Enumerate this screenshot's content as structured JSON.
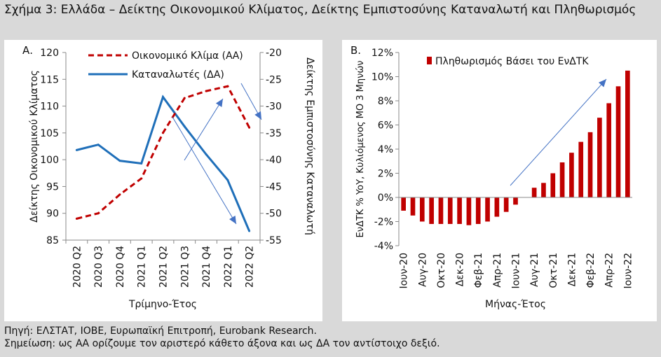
{
  "figure": {
    "title": "Σχήμα 3: Ελλάδα – Δείκτης Οικονομικού Κλίματος, Δείκτης Εμπιστοσύνης Καταναλωτή και Πληθωρισμός",
    "source": "Πηγή: ΕΛΣΤΑΤ, ΙΟΒΕ, Ευρωπαϊκή Επιτροπή, Eurobank Research.",
    "note": "Σημείωση: ως ΑΑ ορίζουμε τον αριστερό κάθετο άξονα και ως ΔΑ τον αντίστοιχο δεξιό."
  },
  "chart_data": [
    {
      "panel_label": "Α.",
      "type": "line",
      "categories": [
        "2020 Q2",
        "2020 Q3",
        "2020 Q4",
        "2021 Q1",
        "2021 Q2",
        "2021 Q3",
        "2021 Q4",
        "2022 Q1",
        "2022 Q2"
      ],
      "xlabel": "Τρίμηνο-Έτος",
      "ylabel": "Δείκτης Οικονομικού Κλίματος",
      "ylabel_right": "Δείκτης Εμπιστοσύνης Καταναλωτή",
      "ylim": [
        85,
        120
      ],
      "yticks": [
        85,
        90,
        95,
        100,
        105,
        110,
        115,
        120
      ],
      "ylim_right": [
        -55,
        -20
      ],
      "yticks_right": [
        -55,
        -50,
        -45,
        -40,
        -35,
        -30,
        -25,
        -20
      ],
      "legend_position": "top",
      "grid": false,
      "series": [
        {
          "name": "Οικονομικό Κλίμα (ΑΑ)",
          "axis": "left",
          "style": "dashed",
          "color": "#c00000",
          "values": [
            89.0,
            90.0,
            93.5,
            96.5,
            105.0,
            111.5,
            112.8,
            113.7,
            106.0
          ]
        },
        {
          "name": "Καταναλωτές (ΔΑ)",
          "axis": "right",
          "style": "solid",
          "color": "#1f6fb9",
          "values": [
            -38.2,
            -37.2,
            -40.2,
            -40.7,
            -28.3,
            -33.8,
            -39.0,
            -43.8,
            -53.3
          ]
        }
      ],
      "annotations": [
        "arrow-up-trend",
        "arrow-down-trend",
        "arrow-down-short"
      ]
    },
    {
      "panel_label": "Β.",
      "type": "bar",
      "categories": [
        "Ιουν-20",
        "Ιουλ-20",
        "Αυγ-20",
        "Σεπ-20",
        "Οκτ-20",
        "Νοε-20",
        "Δεκ-20",
        "Ιαν-21",
        "Φεβ-21",
        "Μαρ-21",
        "Απρ-21",
        "Μαϊ-21",
        "Ιουν-21",
        "Ιουλ-21",
        "Αυγ-21",
        "Σεπ-21",
        "Οκτ-21",
        "Νοε-21",
        "Δεκ-21",
        "Ιαν-22",
        "Φεβ-22",
        "Μαρ-22",
        "Απρ-22",
        "Μαϊ-22",
        "Ιουν-22"
      ],
      "tick_labels": [
        "Ιουν-20",
        "Αυγ-20",
        "Οκτ-20",
        "Δεκ-20",
        "Φεβ-21",
        "Απρ-21",
        "Ιουν-21",
        "Αυγ-21",
        "Οκτ-21",
        "Δεκ-21",
        "Φεβ-22",
        "Απρ-22",
        "Ιουν-22"
      ],
      "xlabel": "Μήνας-Έτος",
      "ylabel": "ΕνΔΤΚ % YoY, Κυλιόμενος ΜΟ 3 Μηνών",
      "ylim": [
        -4,
        12
      ],
      "yticks": [
        "-4%",
        "-2%",
        "0%",
        "2%",
        "4%",
        "6%",
        "8%",
        "10%",
        "12%"
      ],
      "ytick_values": [
        -4,
        -2,
        0,
        2,
        4,
        6,
        8,
        10,
        12
      ],
      "legend_position": "top",
      "grid": false,
      "series": [
        {
          "name": "Πληθωρισμός Βάσει του ΕνΔΤΚ",
          "color": "#c00000",
          "values": [
            -1.1,
            -1.5,
            -2.0,
            -2.2,
            -2.2,
            -2.2,
            -2.2,
            -2.3,
            -2.2,
            -2.0,
            -1.6,
            -1.2,
            -0.6,
            0.0,
            0.8,
            1.2,
            2.0,
            2.9,
            3.7,
            4.6,
            5.4,
            6.6,
            7.8,
            9.2,
            10.5
          ]
        }
      ],
      "annotations": [
        "arrow-up-trend"
      ]
    }
  ],
  "colors": {
    "background": "#d9d9d9",
    "panel": "#ffffff",
    "red": "#c00000",
    "blue": "#1f6fb9",
    "arrow": "#4472c4"
  }
}
